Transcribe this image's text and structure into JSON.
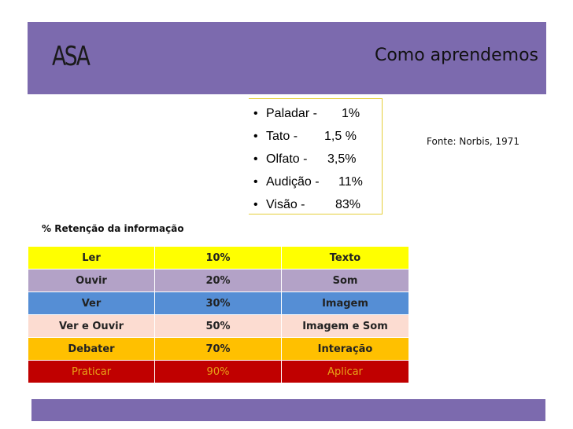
{
  "header": {
    "logo": "ASA",
    "title": "Como aprendemos"
  },
  "senses": [
    {
      "name": "Paladar -",
      "pct": "1%"
    },
    {
      "name": "Tato -",
      "pct": "1,5 %"
    },
    {
      "name": "Olfato -",
      "pct": "3,5%"
    },
    {
      "name": "Audição -",
      "pct": "11%"
    },
    {
      "name": "Visão -",
      "pct": "83%"
    }
  ],
  "source": "Fonte:  Norbis, 1971",
  "table_caption": "%  Retenção da informação",
  "retention_rows": [
    {
      "activity": "Ler",
      "pct": "10%",
      "result": "Texto"
    },
    {
      "activity": "Ouvir",
      "pct": "20%",
      "result": "Som"
    },
    {
      "activity": "Ver",
      "pct": "30%",
      "result": "Imagem"
    },
    {
      "activity": "Ver e Ouvir",
      "pct": "50%",
      "result": "Imagem e Som"
    },
    {
      "activity": "Debater",
      "pct": "70%",
      "result": "Interação"
    },
    {
      "activity": "Praticar",
      "pct": "90%",
      "result": "Aplicar"
    }
  ],
  "colors": {
    "band": "#7c6aae",
    "row_ler": "#ffff00",
    "row_ouvir": "#b3a2c7",
    "row_ver": "#558ed5",
    "row_ver_e_ouvir": "#fcdcd1",
    "row_debater": "#ffc000",
    "row_praticar": "#c00000"
  }
}
